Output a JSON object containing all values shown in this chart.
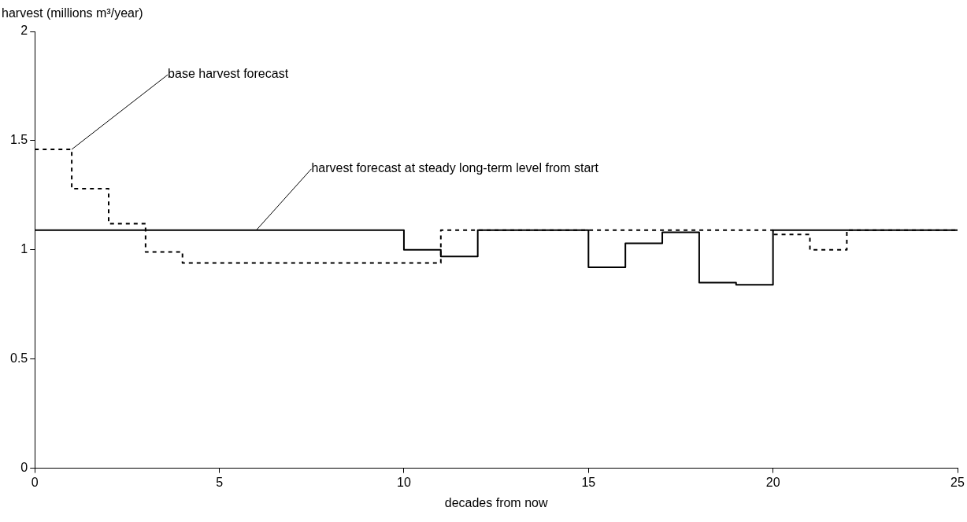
{
  "chart_data": {
    "type": "step",
    "xlabel": "decades from now",
    "ylabel": "harvest (millions m³/year)",
    "x": [
      0,
      1,
      2,
      3,
      4,
      5,
      6,
      7,
      8,
      9,
      10,
      11,
      12,
      13,
      14,
      15,
      16,
      17,
      18,
      19,
      20,
      21,
      22,
      23,
      24,
      25
    ],
    "series": [
      {
        "color": "#000000",
        "line_style": "dashed",
        "values": [
          1.46,
          1.28,
          1.12,
          0.99,
          0.94,
          0.94,
          0.94,
          0.94,
          0.94,
          0.94,
          0.94,
          1.09,
          1.09,
          1.09,
          1.09,
          1.09,
          1.09,
          1.09,
          1.09,
          1.09,
          1.07,
          1.0,
          1.09,
          1.09,
          1.09,
          1.09
        ]
      },
      {
        "color": "#000000",
        "line_style": "solid",
        "values": [
          1.09,
          1.09,
          1.09,
          1.09,
          1.09,
          1.09,
          1.09,
          1.09,
          1.09,
          1.09,
          1.0,
          0.97,
          1.09,
          1.09,
          1.09,
          0.92,
          1.03,
          1.08,
          0.85,
          0.84,
          1.09,
          1.09,
          1.09,
          1.09,
          1.09,
          1.09
        ]
      }
    ],
    "annotations": [
      {
        "text": "base harvest forecast",
        "x": 1,
        "y": 1.46
      },
      {
        "text": "harvest forecast at steady long-term level from start",
        "x": 6,
        "y": 1.09
      }
    ],
    "xlim": [
      0,
      25
    ],
    "xticks": [
      0,
      5,
      10,
      15,
      20,
      25
    ],
    "ylim": [
      0,
      2
    ],
    "yticks": [
      0,
      0.5,
      1,
      1.5,
      2
    ],
    "grid": false,
    "legend": false,
    "marker": "none"
  }
}
